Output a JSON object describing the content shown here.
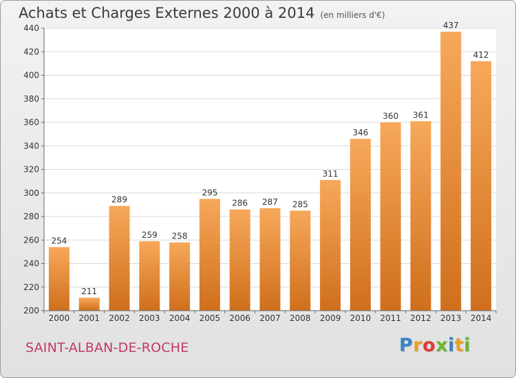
{
  "header": {
    "title": "Achats et Charges Externes 2000 à 2014",
    "unit": "(en milliers d'€)"
  },
  "footer": {
    "commune": "SAINT-ALBAN-DE-ROCHE",
    "logo": {
      "letters": [
        "P",
        "r",
        "o",
        "x",
        "i",
        "t",
        "i"
      ],
      "colors": [
        "#3a82c4",
        "#e8a020",
        "#e23a3a",
        "#6ab42d",
        "#3a82c4",
        "#e8a020",
        "#6ab42d"
      ]
    }
  },
  "colors": {
    "bar_top": "#f7a85a",
    "bar_bottom": "#cf6f1c",
    "grid": "#d9d9d9",
    "axis": "#666666",
    "text": "#333333"
  },
  "chart_data": {
    "type": "bar",
    "title": "Achats et Charges Externes 2000 à 2014",
    "subtitle": "(en milliers d'€)",
    "categories": [
      "2000",
      "2001",
      "2002",
      "2003",
      "2004",
      "2005",
      "2006",
      "2007",
      "2008",
      "2009",
      "2010",
      "2011",
      "2012",
      "2013",
      "2014"
    ],
    "values": [
      254,
      211,
      289,
      259,
      258,
      295,
      286,
      287,
      285,
      311,
      346,
      360,
      361,
      437,
      412
    ],
    "ylim": [
      200,
      440
    ],
    "yticks": [
      200,
      220,
      240,
      260,
      280,
      300,
      320,
      340,
      360,
      380,
      400,
      420,
      440
    ],
    "grid": true,
    "data_labels": true
  }
}
